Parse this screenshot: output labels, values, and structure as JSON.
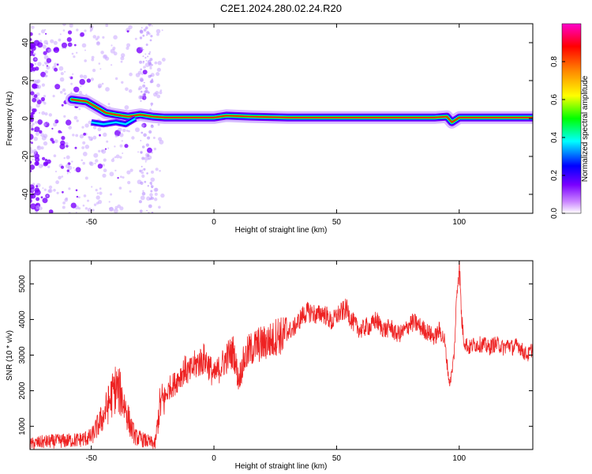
{
  "title": "C2E1.2024.280.02.24.R20",
  "colors": {
    "snr_line": "#ee2222",
    "colormap": [
      "#ffffff",
      "#cc88ff",
      "#7a00ff",
      "#0000ff",
      "#00ffff",
      "#00ff00",
      "#ffff00",
      "#ff8800",
      "#ff0000",
      "#ff00cc"
    ]
  },
  "chart_data": [
    {
      "type": "heatmap",
      "xlabel": "Height of straight line (km)",
      "ylabel": "Frequency (Hz)",
      "xlim": [
        -75,
        130
      ],
      "ylim": [
        -50,
        50
      ],
      "x_ticks": [
        "-50",
        "0",
        "50",
        "100"
      ],
      "y_ticks": [
        "40",
        "20",
        "0",
        "-20",
        "-40"
      ],
      "colorbar": {
        "label": "Normalized spectral amplitude",
        "range": [
          0,
          1
        ],
        "ticks": [
          "0.0",
          "0.2",
          "0.4",
          "0.6",
          "0.8"
        ]
      },
      "ridge": [
        {
          "x": -58,
          "y": 10
        },
        {
          "x": -52,
          "y": 9
        },
        {
          "x": -48,
          "y": 6
        },
        {
          "x": -44,
          "y": 3
        },
        {
          "x": -40,
          "y": 2
        },
        {
          "x": -35,
          "y": 1
        },
        {
          "x": -30,
          "y": 2
        },
        {
          "x": -25,
          "y": 1
        },
        {
          "x": -20,
          "y": 0.5
        },
        {
          "x": 0,
          "y": 0.5
        },
        {
          "x": 5,
          "y": 1.5
        },
        {
          "x": 15,
          "y": 1
        },
        {
          "x": 30,
          "y": 0.5
        },
        {
          "x": 90,
          "y": 0.5
        },
        {
          "x": 95,
          "y": 1
        },
        {
          "x": 97,
          "y": -2
        },
        {
          "x": 100,
          "y": 0.5
        },
        {
          "x": 130,
          "y": 0.5
        }
      ]
    },
    {
      "type": "line",
      "xlabel": "Height of straight line (km)",
      "ylabel": "SNR (10 * v/v)",
      "xlim": [
        -75,
        130
      ],
      "ylim": [
        350,
        5650
      ],
      "x_ticks": [
        "-50",
        "0",
        "50",
        "100"
      ],
      "y_ticks": [
        "1000",
        "2000",
        "3000",
        "4000",
        "5000"
      ],
      "series": [
        {
          "x": [
            -75,
            -70,
            -65,
            -60,
            -55,
            -50,
            -45,
            -42,
            -40,
            -38,
            -36,
            -34,
            -32,
            -30,
            -28,
            -26,
            -24,
            -22,
            -20,
            -18,
            -16,
            -14,
            -12,
            -10,
            -8,
            -6,
            -4,
            -2,
            0,
            2,
            4,
            6,
            8,
            10,
            12,
            14,
            16,
            18,
            20,
            22,
            24,
            26,
            28,
            30,
            32,
            34,
            36,
            38,
            40,
            42,
            44,
            46,
            48,
            50,
            52,
            54,
            56,
            58,
            60,
            62,
            64,
            66,
            68,
            70,
            72,
            74,
            76,
            78,
            80,
            82,
            84,
            86,
            88,
            90,
            92,
            94,
            96,
            97,
            98,
            99,
            100,
            101,
            102,
            104,
            106,
            108,
            110,
            112,
            114,
            116,
            118,
            120,
            122,
            124,
            126,
            128,
            130
          ],
          "values": [
            500,
            560,
            580,
            600,
            620,
            700,
            1300,
            1800,
            2100,
            1900,
            1500,
            1000,
            700,
            650,
            600,
            550,
            500,
            1600,
            1800,
            2100,
            2200,
            2400,
            2600,
            2500,
            2700,
            2800,
            2900,
            2700,
            2400,
            2600,
            2800,
            3000,
            3100,
            2300,
            2800,
            3100,
            3200,
            3300,
            3300,
            3400,
            3400,
            3600,
            3500,
            3700,
            3700,
            3900,
            4100,
            4200,
            4200,
            4100,
            4200,
            4100,
            3900,
            4100,
            4200,
            4300,
            4000,
            3800,
            3700,
            3800,
            3800,
            4000,
            3800,
            3700,
            3800,
            3600,
            3600,
            3700,
            3900,
            3900,
            3800,
            3700,
            3600,
            3500,
            3700,
            3400,
            2200,
            2500,
            3100,
            4700,
            5600,
            4000,
            3400,
            3200,
            3300,
            3300,
            3300,
            3200,
            3300,
            3300,
            3200,
            3300,
            3200,
            3300,
            3100,
            3000,
            3200
          ]
        }
      ]
    }
  ]
}
